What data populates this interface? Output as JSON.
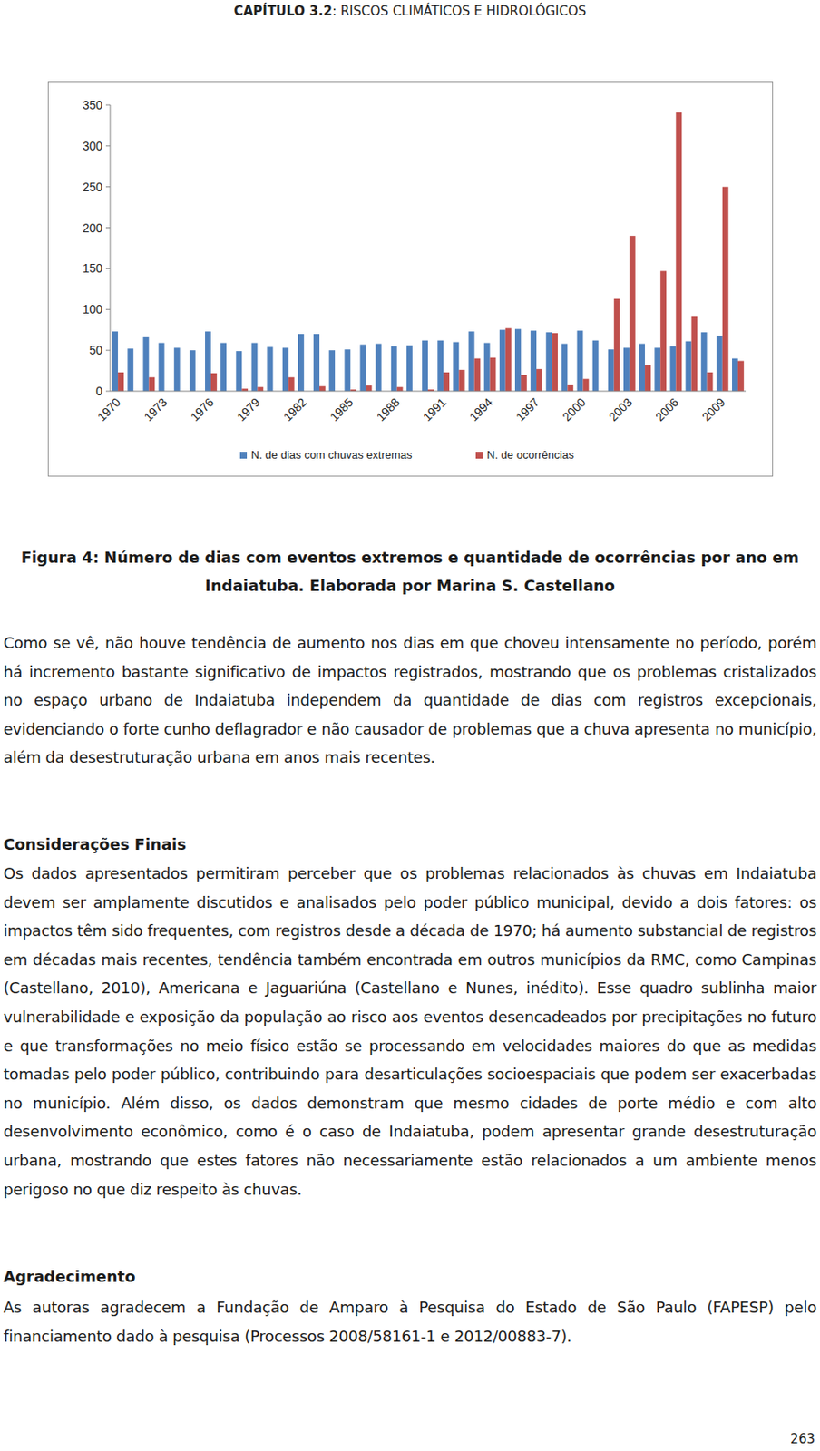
{
  "header": {
    "chapter": "CAPÍTULO 3.2",
    "title": ": RISCOS CLIMÁTICOS E HIDROLÓGICOS"
  },
  "chart_data": {
    "type": "bar",
    "categories": [
      "1970",
      null,
      null,
      "1973",
      null,
      null,
      "1976",
      null,
      null,
      "1979",
      null,
      null,
      "1982",
      null,
      null,
      "1985",
      null,
      null,
      "1988",
      null,
      null,
      "1991",
      null,
      null,
      "1994",
      null,
      null,
      "1997",
      null,
      null,
      "2000",
      null,
      null,
      "2003",
      null,
      null,
      "2006",
      null,
      null,
      "2009",
      null
    ],
    "series": [
      {
        "name": "N. de dias com chuvas extremas",
        "color": "#4f81bd",
        "values": [
          73,
          52,
          66,
          59,
          53,
          50,
          73,
          59,
          49,
          59,
          54,
          53,
          70,
          70,
          50,
          51,
          57,
          58,
          55,
          56,
          62,
          62,
          60,
          73,
          59,
          75,
          76,
          74,
          72,
          58,
          74,
          62,
          51,
          53,
          58,
          53,
          55,
          61,
          72,
          68,
          40
        ]
      },
      {
        "name": "N. de ocorrências",
        "color": "#c0504d",
        "values": [
          23,
          0,
          17,
          0,
          0,
          0,
          22,
          0,
          3,
          5,
          0,
          17,
          0,
          6,
          0,
          2,
          7,
          0,
          5,
          0,
          2,
          23,
          26,
          40,
          41,
          77,
          20,
          27,
          71,
          8,
          15,
          0,
          113,
          190,
          32,
          147,
          341,
          91,
          23,
          250,
          37
        ]
      }
    ],
    "ylim": [
      0,
      350
    ],
    "yticks": [
      0,
      50,
      100,
      150,
      200,
      250,
      300,
      350
    ],
    "grid": false,
    "legend": "bottom"
  },
  "caption": [
    "Figura 4: Número de dias com eventos extremos e quantidade de ocorrências por ano em",
    "Indaiatuba. Elaborada por Marina S. Castellano"
  ],
  "body": [
    "Como se vê, não houve tendência de aumento nos dias em que choveu intensamente no período, porém há incremento bastante significativo de impactos registrados, mostrando que os problemas cristalizados no espaço urbano de Indaiatuba independem da quantidade de dias com registros excepcionais, evidenciando o forte cunho deflagrador e não causador de problemas que a chuva apresenta no município, além da desestruturação urbana em anos mais recentes."
  ],
  "sections": [
    {
      "heading": "Considerações Finais",
      "text": "Os dados apresentados permitiram perceber que os problemas relacionados às chuvas em Indaiatuba devem ser amplamente discutidos e analisados pelo poder público municipal, devido a dois fatores: os impactos têm sido frequentes, com registros desde a década de 1970; há aumento substancial de registros em décadas mais recentes, tendência também encontrada em outros municípios da RMC, como Campinas (Castellano, 2010), Americana e Jaguariúna (Castellano e Nunes, inédito). Esse quadro sublinha maior vulnerabilidade e exposição da população ao risco aos eventos desencadeados por precipitações no futuro e que transformações no meio físico estão se processando em velocidades maiores do que as medidas tomadas pelo poder público, contribuindo para desarticulações socioespaciais que podem ser exacerbadas no município. Além disso, os dados demonstram que mesmo cidades de porte médio e com alto desenvolvimento econômico, como é o caso de Indaiatuba, podem apresentar grande desestruturação urbana, mostrando que estes fatores não necessariamente estão relacionados a um ambiente menos perigoso no que diz respeito às chuvas."
    },
    {
      "heading": "Agradecimento",
      "text": "As autoras agradecem a Fundação de Amparo à Pesquisa do Estado de São Paulo (FAPESP) pelo financiamento dado à pesquisa (Processos 2008/58161-1 e 2012/00883-7)."
    }
  ],
  "page_number": "263"
}
